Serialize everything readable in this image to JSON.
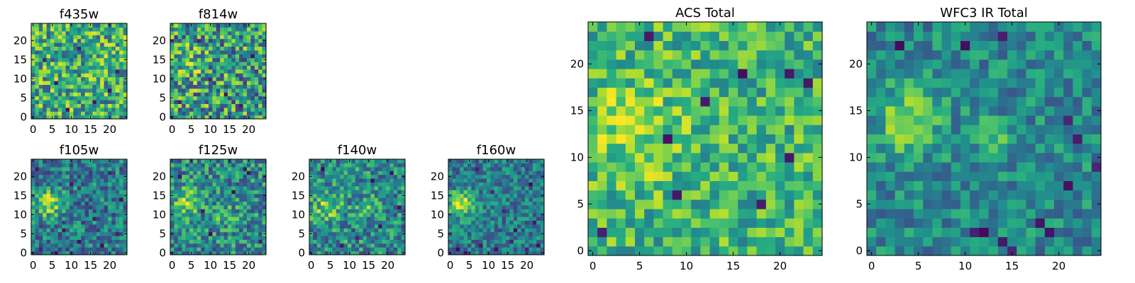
{
  "chart_data": [
    {
      "type": "heatmap",
      "title": "f435w",
      "colormap": "viridis",
      "x_range": [
        0,
        25
      ],
      "y_range": [
        0,
        25
      ],
      "grid_size": 25,
      "x_ticks": [
        0,
        5,
        10,
        15,
        20
      ],
      "y_ticks": [
        0,
        5,
        10,
        15,
        20
      ],
      "x_tick_labels": [
        "0",
        "5",
        "10",
        "15",
        "20"
      ],
      "y_tick_labels": [
        "0",
        "5",
        "10",
        "15",
        "20"
      ],
      "blobs": [],
      "dark_pixels": [
        [
          6,
          9
        ],
        [
          16,
          4
        ],
        [
          3,
          15
        ],
        [
          12,
          18
        ],
        [
          20,
          7
        ],
        [
          9,
          2
        ],
        [
          22,
          12
        ]
      ],
      "base": 0.62,
      "noise": 0.34,
      "seed": 11
    },
    {
      "type": "heatmap",
      "title": "f814w",
      "colormap": "viridis",
      "x_range": [
        0,
        25
      ],
      "y_range": [
        0,
        25
      ],
      "grid_size": 25,
      "x_ticks": [
        0,
        5,
        10,
        15,
        20
      ],
      "y_ticks": [
        0,
        5,
        10,
        15,
        20
      ],
      "x_tick_labels": [
        "0",
        "5",
        "10",
        "15",
        "20"
      ],
      "y_tick_labels": [
        "0",
        "5",
        "10",
        "15",
        "20"
      ],
      "blobs": [
        {
          "x": 4,
          "y": 14,
          "amp": 0.22,
          "sigma": 3
        }
      ],
      "dark_pixels": [
        [
          10,
          10
        ],
        [
          18,
          3
        ],
        [
          7,
          20
        ],
        [
          21,
          16
        ],
        [
          14,
          6
        ],
        [
          2,
          4
        ]
      ],
      "base": 0.55,
      "noise": 0.38,
      "seed": 23
    },
    {
      "type": "heatmap",
      "title": "ACS Total",
      "colormap": "viridis",
      "x_range": [
        0,
        25
      ],
      "y_range": [
        0,
        25
      ],
      "grid_size": 25,
      "x_ticks": [
        0,
        5,
        10,
        15,
        20
      ],
      "y_ticks": [
        0,
        5,
        10,
        15,
        20
      ],
      "x_tick_labels": [
        "0",
        "5",
        "10",
        "15",
        "20"
      ],
      "y_tick_labels": [
        "0",
        "5",
        "10",
        "15",
        "20"
      ],
      "blobs": [
        {
          "x": 4,
          "y": 13,
          "amp": 0.18,
          "sigma": 4
        }
      ],
      "dark_pixels": [
        [
          16,
          19
        ],
        [
          23,
          18
        ],
        [
          21,
          19
        ],
        [
          8,
          12
        ],
        [
          21,
          10
        ],
        [
          9,
          6
        ],
        [
          1,
          2
        ],
        [
          18,
          5
        ],
        [
          12,
          16
        ],
        [
          6,
          23
        ]
      ],
      "base": 0.66,
      "noise": 0.24,
      "seed": 37
    },
    {
      "type": "heatmap",
      "title": "WFC3 IR Total",
      "colormap": "viridis",
      "x_range": [
        0,
        25
      ],
      "y_range": [
        0,
        25
      ],
      "grid_size": 25,
      "x_ticks": [
        0,
        5,
        10,
        15,
        20
      ],
      "y_ticks": [
        0,
        5,
        10,
        15,
        20
      ],
      "x_tick_labels": [
        "0",
        "5",
        "10",
        "15",
        "20"
      ],
      "y_tick_labels": [
        "0",
        "5",
        "10",
        "15",
        "20"
      ],
      "blobs": [
        {
          "x": 4,
          "y": 14,
          "amp": 0.42,
          "sigma": 2.3
        },
        {
          "x": 13,
          "y": 12,
          "amp": 0.3,
          "sigma": 1.3
        }
      ],
      "dark_pixels": [
        [
          3,
          22
        ],
        [
          14,
          1
        ],
        [
          12,
          2
        ],
        [
          11,
          2
        ],
        [
          15,
          0
        ],
        [
          19,
          2
        ],
        [
          22,
          12
        ],
        [
          21,
          14
        ],
        [
          21,
          7
        ],
        [
          18,
          3
        ],
        [
          14,
          23
        ],
        [
          10,
          22
        ],
        [
          24,
          9
        ]
      ],
      "base": 0.47,
      "noise": 0.2,
      "seed": 41
    },
    {
      "type": "heatmap",
      "title": "f105w",
      "colormap": "viridis",
      "x_range": [
        0,
        25
      ],
      "y_range": [
        0,
        25
      ],
      "grid_size": 25,
      "x_ticks": [
        0,
        5,
        10,
        15,
        20
      ],
      "y_ticks": [
        0,
        5,
        10,
        15,
        20
      ],
      "x_tick_labels": [
        "0",
        "5",
        "10",
        "15",
        "20"
      ],
      "y_tick_labels": [
        "0",
        "5",
        "10",
        "15",
        "20"
      ],
      "blobs": [
        {
          "x": 4,
          "y": 13,
          "amp": 0.45,
          "sigma": 2.4
        }
      ],
      "dark_pixels": [
        [
          2,
          1
        ],
        [
          6,
          0
        ],
        [
          12,
          3
        ],
        [
          18,
          2
        ],
        [
          22,
          5
        ],
        [
          20,
          21
        ],
        [
          1,
          22
        ],
        [
          10,
          18
        ],
        [
          16,
          9
        ],
        [
          23,
          14
        ],
        [
          8,
          6
        ]
      ],
      "base": 0.42,
      "noise": 0.26,
      "seed": 53
    },
    {
      "type": "heatmap",
      "title": "f125w",
      "colormap": "viridis",
      "x_range": [
        0,
        25
      ],
      "y_range": [
        0,
        25
      ],
      "grid_size": 25,
      "x_ticks": [
        0,
        5,
        10,
        15,
        20
      ],
      "y_ticks": [
        0,
        5,
        10,
        15,
        20
      ],
      "x_tick_labels": [
        "0",
        "5",
        "10",
        "15",
        "20"
      ],
      "y_tick_labels": [
        "0",
        "5",
        "10",
        "15",
        "20"
      ],
      "blobs": [
        {
          "x": 4,
          "y": 14,
          "amp": 0.38,
          "sigma": 2.5
        },
        {
          "x": 14,
          "y": 10,
          "amp": 0.2,
          "sigma": 2
        }
      ],
      "dark_pixels": [
        [
          20,
          21
        ],
        [
          19,
          22
        ],
        [
          10,
          5
        ],
        [
          23,
          3
        ],
        [
          2,
          20
        ],
        [
          16,
          16
        ],
        [
          8,
          11
        ]
      ],
      "base": 0.48,
      "noise": 0.28,
      "seed": 67
    },
    {
      "type": "heatmap",
      "title": "f140w",
      "colormap": "viridis",
      "x_range": [
        0,
        25
      ],
      "y_range": [
        0,
        25
      ],
      "grid_size": 25,
      "x_ticks": [
        0,
        5,
        10,
        15,
        20
      ],
      "y_ticks": [
        0,
        5,
        10,
        15,
        20
      ],
      "x_tick_labels": [
        "0",
        "5",
        "10",
        "15",
        "20"
      ],
      "y_tick_labels": [
        "0",
        "5",
        "10",
        "15",
        "20"
      ],
      "blobs": [
        {
          "x": 4,
          "y": 12,
          "amp": 0.32,
          "sigma": 2.6
        },
        {
          "x": 14,
          "y": 12,
          "amp": 0.22,
          "sigma": 1.8
        }
      ],
      "dark_pixels": [
        [
          21,
          21
        ],
        [
          12,
          4
        ],
        [
          3,
          22
        ],
        [
          18,
          7
        ],
        [
          8,
          2
        ],
        [
          23,
          12
        ],
        [
          16,
          19
        ]
      ],
      "base": 0.48,
      "noise": 0.28,
      "seed": 79
    },
    {
      "type": "heatmap",
      "title": "f160w",
      "colormap": "viridis",
      "x_range": [
        0,
        25
      ],
      "y_range": [
        0,
        25
      ],
      "grid_size": 25,
      "x_ticks": [
        0,
        5,
        10,
        15,
        20
      ],
      "y_ticks": [
        0,
        5,
        10,
        15,
        20
      ],
      "x_tick_labels": [
        "0",
        "5",
        "10",
        "15",
        "20"
      ],
      "y_tick_labels": [
        "0",
        "5",
        "10",
        "15",
        "20"
      ],
      "blobs": [
        {
          "x": 3,
          "y": 13,
          "amp": 0.5,
          "sigma": 2.3
        }
      ],
      "dark_pixels": [
        [
          2,
          1
        ],
        [
          4,
          0
        ],
        [
          8,
          2
        ],
        [
          12,
          1
        ],
        [
          16,
          3
        ],
        [
          20,
          1
        ],
        [
          23,
          2
        ],
        [
          22,
          8
        ],
        [
          17,
          6
        ],
        [
          14,
          11
        ],
        [
          21,
          18
        ],
        [
          7,
          22
        ],
        [
          11,
          16
        ]
      ],
      "base": 0.42,
      "noise": 0.22,
      "seed": 97
    }
  ]
}
